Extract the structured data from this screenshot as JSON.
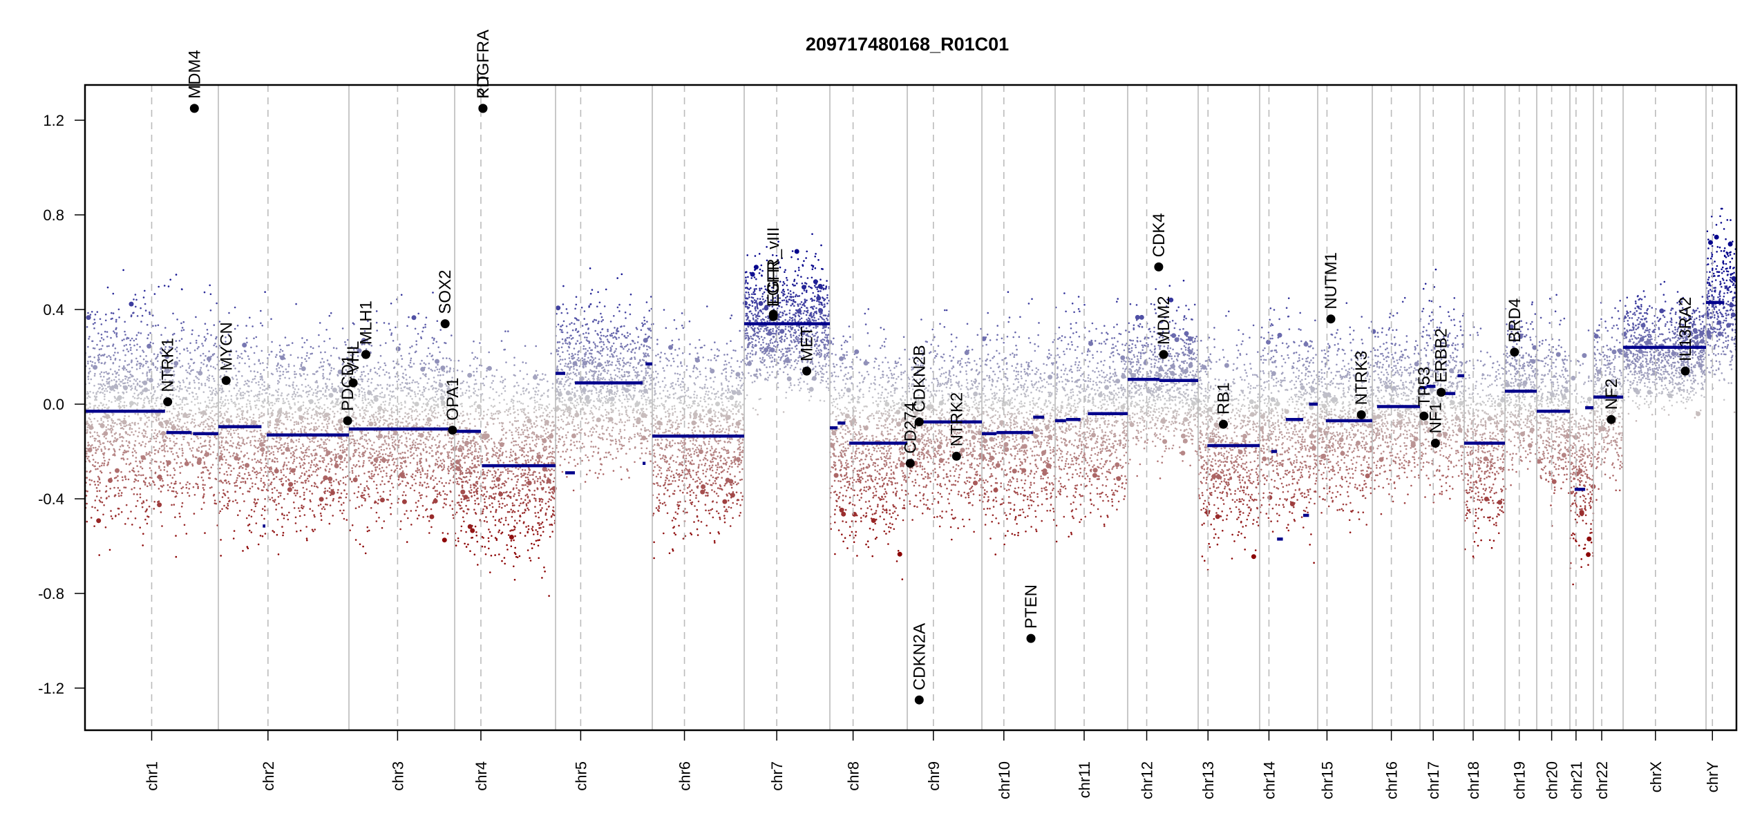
{
  "chart_data": {
    "type": "scatter",
    "title": "209717480168_R01C01",
    "xlabel": "",
    "ylabel": "",
    "ylim": [
      -1.378,
      1.349
    ],
    "y_ticks": [
      -1.2,
      -0.8,
      -0.4,
      0.0,
      0.4,
      0.8,
      1.2
    ],
    "y_tick_labels": [
      "-1.2",
      "-0.8",
      "-0.4",
      "0.0",
      "0.4",
      "0.8",
      "1.2"
    ],
    "grid": false,
    "legend": "none",
    "colors": {
      "gain": "#00008b",
      "loss": "#8b0000",
      "neutral": "#cccccc",
      "segment": "#00008b",
      "gene_point": "#000000",
      "chrom_boundary": "#bbbbbb",
      "centromere": "#bbbbbb"
    },
    "chromosomes": [
      {
        "name": "chr1",
        "label": "chr1",
        "length": 249,
        "centromere": 0.5
      },
      {
        "name": "chr2",
        "label": "chr2",
        "length": 243,
        "centromere": 0.38
      },
      {
        "name": "chr3",
        "label": "chr3",
        "length": 198,
        "centromere": 0.46
      },
      {
        "name": "chr4",
        "label": "chr4",
        "length": 191,
        "centromere": 0.26
      },
      {
        "name": "chr5",
        "label": "chr5",
        "length": 181,
        "centromere": 0.26
      },
      {
        "name": "chr6",
        "label": "chr6",
        "length": 171,
        "centromere": 0.35
      },
      {
        "name": "chr7",
        "label": "chr7",
        "length": 159,
        "centromere": 0.38
      },
      {
        "name": "chr8",
        "label": "chr8",
        "length": 146,
        "centromere": 0.3
      },
      {
        "name": "chr9",
        "label": "chr9",
        "length": 141,
        "centromere": 0.35
      },
      {
        "name": "chr10",
        "label": "chr10",
        "length": 135,
        "centromere": 0.3
      },
      {
        "name": "chr11",
        "label": "chr11",
        "length": 135,
        "centromere": 0.4
      },
      {
        "name": "chr12",
        "label": "chr12",
        "length": 133,
        "centromere": 0.27
      },
      {
        "name": "chr13",
        "label": "chr13",
        "length": 115,
        "centromere": 0.16
      },
      {
        "name": "chr14",
        "label": "chr14",
        "length": 107,
        "centromere": 0.16
      },
      {
        "name": "chr15",
        "label": "chr15",
        "length": 102,
        "centromere": 0.17
      },
      {
        "name": "chr16",
        "label": "chr16",
        "length": 90,
        "centromere": 0.4
      },
      {
        "name": "chr17",
        "label": "chr17",
        "length": 81,
        "centromere": 0.3
      },
      {
        "name": "chr18",
        "label": "chr18",
        "length": 78,
        "centromere": 0.22
      },
      {
        "name": "chr19",
        "label": "chr19",
        "length": 59,
        "centromere": 0.45
      },
      {
        "name": "chr20",
        "label": "chr20",
        "length": 63,
        "centromere": 0.45
      },
      {
        "name": "chr21",
        "label": "chr21",
        "length": 48,
        "centromere": 0.26
      },
      {
        "name": "chr22",
        "label": "chr22",
        "length": 51,
        "centromere": 0.28
      },
      {
        "name": "chrX",
        "label": "chrX",
        "length": 155,
        "centromere": 0.39
      },
      {
        "name": "chrY",
        "label": "chrY",
        "length": 59,
        "centromere": 0.21
      }
    ],
    "segments": [
      {
        "chr": "chr1",
        "start": 0.0,
        "end": 0.6,
        "value": -0.03
      },
      {
        "chr": "chr1",
        "start": 0.61,
        "end": 0.8,
        "value": -0.12
      },
      {
        "chr": "chr1",
        "start": 0.81,
        "end": 1.0,
        "value": -0.125
      },
      {
        "chr": "chr2",
        "start": 0.0,
        "end": 0.33,
        "value": -0.095
      },
      {
        "chr": "chr2",
        "start": 0.34,
        "end": 0.36,
        "value": -0.515
      },
      {
        "chr": "chr2",
        "start": 0.37,
        "end": 1.0,
        "value": -0.13
      },
      {
        "chr": "chr3",
        "start": 0.0,
        "end": 1.0,
        "value": -0.105
      },
      {
        "chr": "chr4",
        "start": 0.0,
        "end": 0.26,
        "value": -0.115
      },
      {
        "chr": "chr4",
        "start": 0.27,
        "end": 1.0,
        "value": -0.26
      },
      {
        "chr": "chr5",
        "start": 0.0,
        "end": 0.1,
        "value": 0.13
      },
      {
        "chr": "chr5",
        "start": 0.1,
        "end": 0.2,
        "value": -0.29
      },
      {
        "chr": "chr5",
        "start": 0.2,
        "end": 0.9,
        "value": 0.09
      },
      {
        "chr": "chr5",
        "start": 0.9,
        "end": 0.93,
        "value": -0.25
      },
      {
        "chr": "chr5",
        "start": 0.93,
        "end": 1.0,
        "value": 0.17
      },
      {
        "chr": "chr6",
        "start": 0.0,
        "end": 1.0,
        "value": -0.135
      },
      {
        "chr": "chr7",
        "start": 0.0,
        "end": 1.0,
        "value": 0.34
      },
      {
        "chr": "chr8",
        "start": 0.0,
        "end": 0.1,
        "value": -0.1
      },
      {
        "chr": "chr8",
        "start": 0.1,
        "end": 0.2,
        "value": -0.08
      },
      {
        "chr": "chr8",
        "start": 0.25,
        "end": 1.0,
        "value": -0.165
      },
      {
        "chr": "chr9",
        "start": 0.0,
        "end": 0.08,
        "value": -0.24
      },
      {
        "chr": "chr9",
        "start": 0.12,
        "end": 1.0,
        "value": -0.075
      },
      {
        "chr": "chr10",
        "start": 0.0,
        "end": 0.2,
        "value": -0.125
      },
      {
        "chr": "chr10",
        "start": 0.2,
        "end": 0.7,
        "value": -0.12
      },
      {
        "chr": "chr10",
        "start": 0.7,
        "end": 0.85,
        "value": -0.055
      },
      {
        "chr": "chr11",
        "start": 0.0,
        "end": 0.15,
        "value": -0.07
      },
      {
        "chr": "chr11",
        "start": 0.15,
        "end": 0.35,
        "value": -0.065
      },
      {
        "chr": "chr11",
        "start": 0.45,
        "end": 1.0,
        "value": -0.04
      },
      {
        "chr": "chr12",
        "start": 0.0,
        "end": 0.45,
        "value": 0.105
      },
      {
        "chr": "chr12",
        "start": 0.45,
        "end": 1.0,
        "value": 0.1
      },
      {
        "chr": "chr13",
        "start": 0.15,
        "end": 1.0,
        "value": -0.175
      },
      {
        "chr": "chr14",
        "start": 0.2,
        "end": 0.3,
        "value": -0.2
      },
      {
        "chr": "chr14",
        "start": 0.3,
        "end": 0.4,
        "value": -0.57
      },
      {
        "chr": "chr14",
        "start": 0.45,
        "end": 0.75,
        "value": -0.065
      },
      {
        "chr": "chr14",
        "start": 0.75,
        "end": 0.85,
        "value": -0.47
      },
      {
        "chr": "chr14",
        "start": 0.85,
        "end": 1.0,
        "value": 0.0
      },
      {
        "chr": "chr15",
        "start": 0.15,
        "end": 1.0,
        "value": -0.07
      },
      {
        "chr": "chr16",
        "start": 0.1,
        "end": 1.0,
        "value": -0.01
      },
      {
        "chr": "chr17",
        "start": 0.0,
        "end": 0.15,
        "value": 0.07
      },
      {
        "chr": "chr17",
        "start": 0.15,
        "end": 0.35,
        "value": 0.075
      },
      {
        "chr": "chr17",
        "start": 0.5,
        "end": 0.8,
        "value": 0.045
      },
      {
        "chr": "chr17",
        "start": 0.85,
        "end": 1.0,
        "value": 0.12
      },
      {
        "chr": "chr18",
        "start": 0.0,
        "end": 1.0,
        "value": -0.165
      },
      {
        "chr": "chr19",
        "start": 0.0,
        "end": 1.0,
        "value": 0.055
      },
      {
        "chr": "chr20",
        "start": 0.0,
        "end": 1.0,
        "value": -0.03
      },
      {
        "chr": "chr21",
        "start": 0.2,
        "end": 0.65,
        "value": -0.36
      },
      {
        "chr": "chr21",
        "start": 0.65,
        "end": 1.0,
        "value": -0.015
      },
      {
        "chr": "chr22",
        "start": 0.0,
        "end": 1.0,
        "value": 0.03
      },
      {
        "chr": "chrX",
        "start": 0.0,
        "end": 1.0,
        "value": 0.24
      },
      {
        "chr": "chrY",
        "start": 0.0,
        "end": 0.6,
        "value": 0.43
      }
    ],
    "genes": [
      {
        "name": "NTRK1",
        "chr": "chr1",
        "pos": 0.62,
        "value": 0.01
      },
      {
        "name": "MDM4",
        "chr": "chr1",
        "pos": 0.82,
        "value": 1.25
      },
      {
        "name": "MYCN",
        "chr": "chr2",
        "pos": 0.06,
        "value": 0.1
      },
      {
        "name": "VHL",
        "chr": "chr3",
        "pos": 0.04,
        "value": 0.09
      },
      {
        "name": "MLH1",
        "chr": "chr3",
        "pos": 0.16,
        "value": 0.21
      },
      {
        "name": "PDCD1",
        "chr": "chr2",
        "pos": 0.99,
        "value": -0.07
      },
      {
        "name": "SOX2",
        "chr": "chr3",
        "pos": 0.91,
        "value": 0.34
      },
      {
        "name": "OPA1",
        "chr": "chr3",
        "pos": 0.98,
        "value": -0.11
      },
      {
        "name": "PDGFRA",
        "chr": "chr4",
        "pos": 0.28,
        "value": 1.25
      },
      {
        "name": "KIT",
        "chr": "chr4",
        "pos": 0.28,
        "value": 1.25
      },
      {
        "name": "EGFR",
        "chr": "chr7",
        "pos": 0.34,
        "value": 0.37
      },
      {
        "name": "EGFR_vIII",
        "chr": "chr7",
        "pos": 0.34,
        "value": 0.38
      },
      {
        "name": "MET",
        "chr": "chr7",
        "pos": 0.73,
        "value": 0.14
      },
      {
        "name": "CD274",
        "chr": "chr9",
        "pos": 0.04,
        "value": -0.25
      },
      {
        "name": "CDKN2A",
        "chr": "chr9",
        "pos": 0.16,
        "value": -1.25
      },
      {
        "name": "CDKN2B",
        "chr": "chr9",
        "pos": 0.16,
        "value": -0.075
      },
      {
        "name": "NTRK2",
        "chr": "chr9",
        "pos": 0.66,
        "value": -0.22
      },
      {
        "name": "PTEN",
        "chr": "chr10",
        "pos": 0.67,
        "value": -0.99
      },
      {
        "name": "MDM2",
        "chr": "chr12",
        "pos": 0.51,
        "value": 0.21
      },
      {
        "name": "CDK4",
        "chr": "chr12",
        "pos": 0.44,
        "value": 0.58
      },
      {
        "name": "RB1",
        "chr": "chr13",
        "pos": 0.41,
        "value": -0.085
      },
      {
        "name": "NUTM1",
        "chr": "chr15",
        "pos": 0.24,
        "value": 0.36
      },
      {
        "name": "NTRK3",
        "chr": "chr15",
        "pos": 0.8,
        "value": -0.045
      },
      {
        "name": "TP53",
        "chr": "chr17",
        "pos": 0.09,
        "value": -0.05
      },
      {
        "name": "NF1",
        "chr": "chr17",
        "pos": 0.35,
        "value": -0.165
      },
      {
        "name": "ERBB2",
        "chr": "chr17",
        "pos": 0.48,
        "value": 0.05
      },
      {
        "name": "BRD4",
        "chr": "chr19",
        "pos": 0.3,
        "value": 0.22
      },
      {
        "name": "NF2",
        "chr": "chr22",
        "pos": 0.6,
        "value": -0.065
      },
      {
        "name": "IL13RA2",
        "chr": "chrX",
        "pos": 0.75,
        "value": 0.14
      }
    ],
    "probe_summary": [
      {
        "chr": "chr1",
        "mean": -0.05,
        "spread": 0.28
      },
      {
        "chr": "chr2",
        "mean": -0.11,
        "spread": 0.26
      },
      {
        "chr": "chr3",
        "mean": -0.09,
        "spread": 0.26
      },
      {
        "chr": "chr4",
        "mean": -0.22,
        "spread": 0.26
      },
      {
        "chr": "chr5",
        "mean": 0.08,
        "spread": 0.22
      },
      {
        "chr": "chr6",
        "mean": -0.12,
        "spread": 0.26
      },
      {
        "chr": "chr7",
        "mean": 0.33,
        "spread": 0.18
      },
      {
        "chr": "chr8",
        "mean": -0.15,
        "spread": 0.26
      },
      {
        "chr": "chr9",
        "mean": -0.09,
        "spread": 0.24
      },
      {
        "chr": "chr10",
        "mean": -0.11,
        "spread": 0.26
      },
      {
        "chr": "chr11",
        "mean": -0.05,
        "spread": 0.26
      },
      {
        "chr": "chr12",
        "mean": 0.09,
        "spread": 0.2
      },
      {
        "chr": "chr13",
        "mean": -0.16,
        "spread": 0.26
      },
      {
        "chr": "chr14",
        "mean": -0.08,
        "spread": 0.26
      },
      {
        "chr": "chr15",
        "mean": -0.06,
        "spread": 0.24
      },
      {
        "chr": "chr16",
        "mean": -0.02,
        "spread": 0.22
      },
      {
        "chr": "chr17",
        "mean": 0.03,
        "spread": 0.24
      },
      {
        "chr": "chr18",
        "mean": -0.15,
        "spread": 0.26
      },
      {
        "chr": "chr19",
        "mean": 0.05,
        "spread": 0.2
      },
      {
        "chr": "chr20",
        "mean": -0.03,
        "spread": 0.24
      },
      {
        "chr": "chr21",
        "mean": -0.25,
        "spread": 0.26
      },
      {
        "chr": "chr22",
        "mean": 0.02,
        "spread": 0.22
      },
      {
        "chr": "chrX",
        "mean": 0.22,
        "spread": 0.14
      },
      {
        "chr": "chrY",
        "mean": 0.42,
        "spread": 0.2
      }
    ]
  }
}
